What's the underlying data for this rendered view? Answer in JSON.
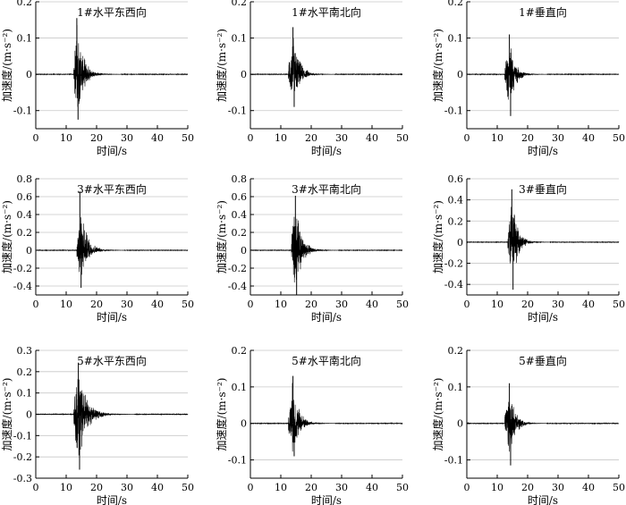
{
  "figure": {
    "x_tick_labels": [
      "0",
      "10",
      "20",
      "30",
      "40",
      "50"
    ],
    "x_axis_label": "时间/s",
    "y_axis_label": "加速度/(m·s⁻²)"
  },
  "chart_data": [
    {
      "type": "line",
      "title": "1#水平东西向",
      "xlabel": "时间/s",
      "ylabel": "加速度/(m·s⁻²)",
      "xlim": [
        0,
        50
      ],
      "ylim": [
        -0.15,
        0.2
      ],
      "yticks": [
        -0.1,
        0,
        0.1,
        0.2
      ],
      "ytick_labels": [
        "-0.1",
        "0",
        "0.1",
        "0.2"
      ],
      "grid": "horizontal",
      "series_color": "#000000",
      "signal": {
        "onset_s": 12.5,
        "peak_time_s": 13.5,
        "peak_positive": 0.155,
        "peak_negative": -0.125,
        "decay_end_s": 23
      }
    },
    {
      "type": "line",
      "title": "1#水平南北向",
      "xlabel": "时间/s",
      "ylabel": "加速度/(m·s⁻²)",
      "xlim": [
        0,
        50
      ],
      "ylim": [
        -0.15,
        0.2
      ],
      "yticks": [
        -0.1,
        0,
        0.1,
        0.2
      ],
      "ytick_labels": [
        "-0.1",
        "0",
        "0.1",
        "0.2"
      ],
      "grid": "horizontal",
      "series_color": "#000000",
      "signal": {
        "onset_s": 12.5,
        "peak_time_s": 14.0,
        "peak_positive": 0.13,
        "peak_negative": -0.09,
        "decay_end_s": 23
      }
    },
    {
      "type": "line",
      "title": "1#垂直向",
      "xlabel": "时间/s",
      "ylabel": "加速度/(m·s⁻²)",
      "xlim": [
        0,
        50
      ],
      "ylim": [
        -0.15,
        0.2
      ],
      "yticks": [
        -0.1,
        0,
        0.1,
        0.2
      ],
      "ytick_labels": [
        "-0.1",
        "0",
        "0.1",
        "0.2"
      ],
      "grid": "horizontal",
      "series_color": "#000000",
      "signal": {
        "onset_s": 12.5,
        "peak_time_s": 14.0,
        "peak_positive": 0.11,
        "peak_negative": -0.115,
        "decay_end_s": 22
      }
    },
    {
      "type": "line",
      "title": "3#水平东西向",
      "xlabel": "时间/s",
      "ylabel": "加速度/(m·s⁻²)",
      "xlim": [
        0,
        50
      ],
      "ylim": [
        -0.5,
        0.8
      ],
      "yticks": [
        -0.4,
        -0.2,
        0,
        0.2,
        0.4,
        0.6,
        0.8
      ],
      "ytick_labels": [
        "-0.4",
        "-0.2",
        "0",
        "0.2",
        "0.4",
        "0.6",
        "0.8"
      ],
      "grid": "horizontal",
      "series_color": "#000000",
      "signal": {
        "onset_s": 13.5,
        "peak_time_s": 14.5,
        "peak_positive": 0.66,
        "peak_negative": -0.42,
        "decay_end_s": 24
      }
    },
    {
      "type": "line",
      "title": "3#水平南北向",
      "xlabel": "时间/s",
      "ylabel": "加速度/(m·s⁻²)",
      "xlim": [
        0,
        50
      ],
      "ylim": [
        -0.5,
        0.8
      ],
      "yticks": [
        -0.4,
        -0.2,
        0,
        0.2,
        0.4,
        0.6,
        0.8
      ],
      "ytick_labels": [
        "-0.4",
        "-0.2",
        "0",
        "0.2",
        "0.4",
        "0.6",
        "0.8"
      ],
      "grid": "horizontal",
      "series_color": "#000000",
      "signal": {
        "onset_s": 13.5,
        "peak_time_s": 14.8,
        "peak_positive": 0.61,
        "peak_negative": -0.5,
        "decay_end_s": 24
      }
    },
    {
      "type": "line",
      "title": "3#垂直向",
      "xlabel": "时间/s",
      "ylabel": "加速度/(m·s⁻²)",
      "xlim": [
        0,
        50
      ],
      "ylim": [
        -0.5,
        0.6
      ],
      "yticks": [
        -0.4,
        -0.2,
        0,
        0.2,
        0.4,
        0.6
      ],
      "ytick_labels": [
        "-0.4",
        "-0.2",
        "0",
        "0.2",
        "0.4",
        "0.6"
      ],
      "grid": "horizontal",
      "series_color": "#000000",
      "signal": {
        "onset_s": 13.5,
        "peak_time_s": 14.8,
        "peak_positive": 0.5,
        "peak_negative": -0.45,
        "decay_end_s": 23
      }
    },
    {
      "type": "line",
      "title": "5#水平东西向",
      "xlabel": "时间/s",
      "ylabel": "加速度/(m·s⁻²)",
      "xlim": [
        0,
        50
      ],
      "ylim": [
        -0.3,
        0.3
      ],
      "yticks": [
        -0.3,
        -0.2,
        -0.1,
        0,
        0.1,
        0.2,
        0.3
      ],
      "ytick_labels": [
        "-0.3",
        "-0.2",
        "-0.1",
        "0",
        "0.1",
        "0.2",
        "0.3"
      ],
      "grid": "horizontal",
      "series_color": "#000000",
      "signal": {
        "onset_s": 12.5,
        "peak_time_s": 14.0,
        "peak_positive": 0.24,
        "peak_negative": -0.26,
        "decay_end_s": 26
      }
    },
    {
      "type": "line",
      "title": "5#水平南北向",
      "xlabel": "时间/s",
      "ylabel": "加速度/(m·s⁻²)",
      "xlim": [
        0,
        50
      ],
      "ylim": [
        -0.15,
        0.2
      ],
      "yticks": [
        -0.1,
        0,
        0.1,
        0.2
      ],
      "ytick_labels": [
        "-0.1",
        "0",
        "0.1",
        "0.2"
      ],
      "grid": "horizontal",
      "series_color": "#000000",
      "signal": {
        "onset_s": 12.5,
        "peak_time_s": 14.0,
        "peak_positive": 0.13,
        "peak_negative": -0.09,
        "decay_end_s": 23
      }
    },
    {
      "type": "line",
      "title": "5#垂直向",
      "xlabel": "时间/s",
      "ylabel": "加速度/(m·s⁻²)",
      "xlim": [
        0,
        50
      ],
      "ylim": [
        -0.15,
        0.2
      ],
      "yticks": [
        -0.1,
        0,
        0.1,
        0.2
      ],
      "ytick_labels": [
        "-0.1",
        "0",
        "0.1",
        "0.2"
      ],
      "grid": "horizontal",
      "series_color": "#000000",
      "signal": {
        "onset_s": 12.5,
        "peak_time_s": 14.0,
        "peak_positive": 0.11,
        "peak_negative": -0.115,
        "decay_end_s": 22
      }
    }
  ]
}
